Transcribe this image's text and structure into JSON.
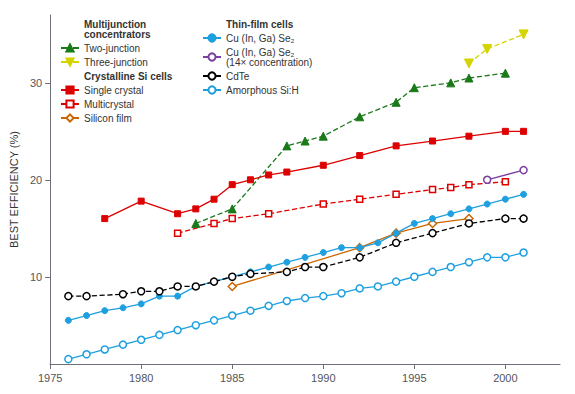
{
  "chart_data": {
    "type": "line",
    "ylabel": "BEST EFFICIENCY (%)",
    "xlim": [
      1975,
      2003
    ],
    "ylim": [
      1,
      37
    ],
    "xticks": [
      1975,
      1980,
      1985,
      1990,
      1995,
      2000
    ],
    "yticks": [
      10,
      20,
      30
    ],
    "grid": false,
    "legend": "upper left",
    "series": [
      {
        "name": "Two-junction",
        "group": "Multijunction\nconcentrators",
        "color": "#1a7a1a",
        "marker": "triangle",
        "line_style": "dashed",
        "x": [
          1983,
          1985,
          1988,
          1989,
          1990,
          1992,
          1994,
          1995,
          1997,
          1998,
          2000
        ],
        "values": [
          15.5,
          17.0,
          23.5,
          24.0,
          24.5,
          26.5,
          28.0,
          29.5,
          30.0,
          30.5,
          31.0
        ]
      },
      {
        "name": "Three-junction",
        "group": "Multijunction\nconcentrators",
        "color": "#d4d400",
        "marker": "triangle-down",
        "line_style": "dashed",
        "x": [
          1998,
          1999,
          2001
        ],
        "values": [
          32.0,
          33.5,
          35.0
        ]
      },
      {
        "name": "Single crystal",
        "group": "Crystalline Si cells",
        "color": "#dd0000",
        "marker": "square",
        "line_style": "solid",
        "x": [
          1978,
          1980,
          1982,
          1983,
          1984,
          1985,
          1986,
          1987,
          1988,
          1990,
          1992,
          1994,
          1996,
          1998,
          2000,
          2001
        ],
        "values": [
          16.0,
          17.8,
          16.5,
          17.0,
          18.0,
          19.5,
          20.0,
          20.5,
          20.8,
          21.5,
          22.5,
          23.5,
          24.0,
          24.5,
          25.0,
          25.0
        ]
      },
      {
        "name": "Multicrystal",
        "group": "Crystalline Si cells",
        "color": "#dd0000",
        "marker": "open-square",
        "line_style": "dashed",
        "x": [
          1982,
          1984,
          1985,
          1987,
          1990,
          1992,
          1994,
          1996,
          1997,
          1998,
          2000
        ],
        "values": [
          14.5,
          15.5,
          16.0,
          16.5,
          17.5,
          18.0,
          18.5,
          19.0,
          19.2,
          19.5,
          19.8
        ]
      },
      {
        "name": "Silicon film",
        "group": "Crystalline Si cells",
        "color": "#cc6600",
        "marker": "open-diamond",
        "line_style": "solid",
        "x": [
          1985,
          1992,
          1994,
          1996,
          1998
        ],
        "values": [
          9.0,
          13.0,
          14.5,
          15.5,
          16.0
        ]
      },
      {
        "name": "Cu (In, Ga) Se₂",
        "group": "Thin-film cells",
        "color": "#1ea0e0",
        "marker": "circle",
        "line_style": "solid",
        "x": [
          1976,
          1977,
          1978,
          1979,
          1980,
          1981,
          1982,
          1983,
          1984,
          1985,
          1986,
          1987,
          1988,
          1989,
          1990,
          1991,
          1992,
          1993,
          1994,
          1995,
          1996,
          1997,
          1998,
          1999,
          2000,
          2001
        ],
        "values": [
          5.5,
          6.0,
          6.5,
          6.8,
          7.2,
          8.0,
          8.0,
          9.0,
          9.5,
          10.0,
          10.5,
          11.0,
          11.5,
          12.0,
          12.5,
          13.0,
          13.0,
          13.5,
          14.5,
          15.5,
          16.0,
          16.5,
          17.0,
          17.5,
          18.0,
          18.5
        ]
      },
      {
        "name": "Cu (In, Ga) Se₂\n(14× concentration)",
        "group": "Thin-film cells",
        "color": "#7b3fa0",
        "marker": "open-circle",
        "line_style": "solid",
        "x": [
          1999,
          2001
        ],
        "values": [
          20.0,
          21.0
        ]
      },
      {
        "name": "CdTe",
        "group": "Thin-film cells",
        "color": "#000000",
        "marker": "open-circle",
        "line_style": "dashed",
        "x": [
          1976,
          1977,
          1979,
          1980,
          1981,
          1982,
          1983,
          1984,
          1985,
          1986,
          1988,
          1989,
          1990,
          1992,
          1994,
          1996,
          1998,
          2000,
          2001
        ],
        "values": [
          8.0,
          8.0,
          8.2,
          8.5,
          8.5,
          9.0,
          9.0,
          9.5,
          10.0,
          10.3,
          10.5,
          11.0,
          11.0,
          12.0,
          13.5,
          14.5,
          15.5,
          16.0,
          16.0
        ]
      },
      {
        "name": "Amorphous Si:H",
        "group": "Thin-film cells",
        "color": "#1ea0e0",
        "marker": "open-circle",
        "line_style": "solid",
        "x": [
          1976,
          1977,
          1978,
          1979,
          1980,
          1981,
          1982,
          1983,
          1984,
          1985,
          1986,
          1987,
          1988,
          1989,
          1990,
          1991,
          1992,
          1993,
          1994,
          1995,
          1996,
          1997,
          1998,
          1999,
          2000,
          2001
        ],
        "values": [
          1.5,
          2.0,
          2.5,
          3.0,
          3.5,
          4.0,
          4.5,
          5.0,
          5.5,
          6.0,
          6.5,
          7.0,
          7.5,
          7.8,
          8.0,
          8.3,
          8.8,
          9.0,
          9.5,
          10.0,
          10.5,
          11.0,
          11.5,
          12.0,
          12.0,
          12.5
        ]
      }
    ]
  }
}
